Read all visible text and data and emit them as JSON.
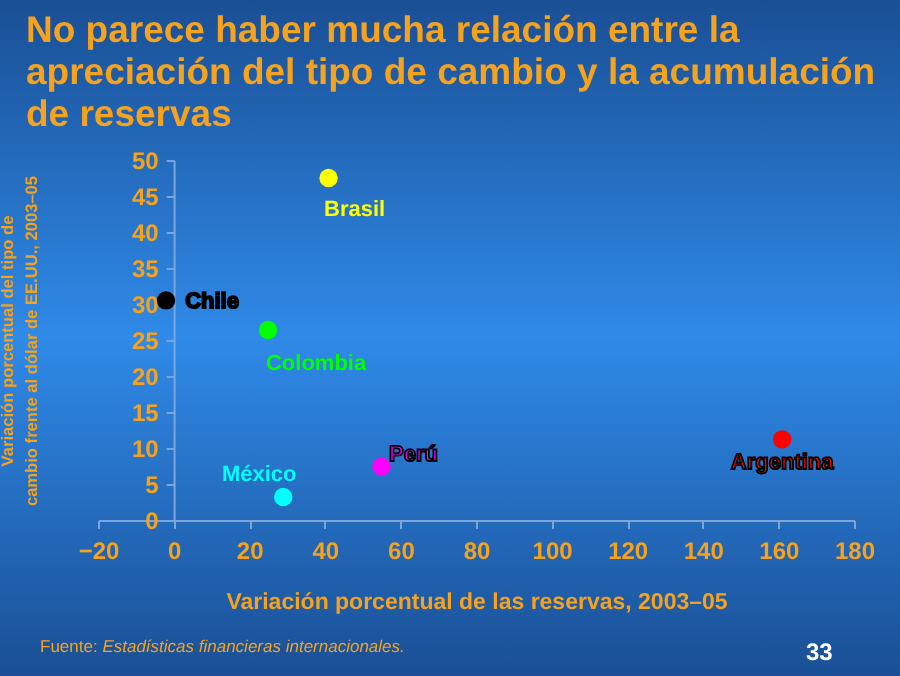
{
  "chart_data": {
    "type": "scatter",
    "title": "No parece haber mucha relación entre la apreciación del tipo de cambio y la acumulación de reservas",
    "xlabel": "Variación porcentual de las reservas, 2003–05",
    "ylabel": "Variación porcentual del tipo de cambio frente al dólar de EE.UU., 2003–05",
    "xlim": [
      -20,
      180
    ],
    "xticks": [
      -20,
      0,
      20,
      40,
      60,
      80,
      100,
      120,
      140,
      160,
      180
    ],
    "ylim": [
      0,
      50
    ],
    "yticks": [
      0,
      5,
      10,
      15,
      20,
      25,
      30,
      35,
      40,
      45,
      50
    ],
    "grid": false,
    "legend": false,
    "marker": "circle",
    "series": [
      {
        "name": "Brasil",
        "color": "#ffff00",
        "x": [
          41
        ],
        "values": [
          47.5
        ]
      },
      {
        "name": "Chile",
        "color": "#000000",
        "x": [
          -2
        ],
        "values": [
          30.5
        ]
      },
      {
        "name": "Colombia",
        "color": "#00ff00",
        "x": [
          25
        ],
        "values": [
          26.4
        ]
      },
      {
        "name": "México",
        "color": "#00ffff",
        "x": [
          29
        ],
        "values": [
          3.2
        ]
      },
      {
        "name": "Perú",
        "color": "#ff00ff",
        "x": [
          55
        ],
        "values": [
          7.4
        ]
      },
      {
        "name": "Argentina",
        "color": "#ff0000",
        "x": [
          161
        ],
        "values": [
          11.2
        ]
      }
    ],
    "annotations": [
      "Fuente: Estadísticas financieras internacionales.",
      "33"
    ]
  }
}
